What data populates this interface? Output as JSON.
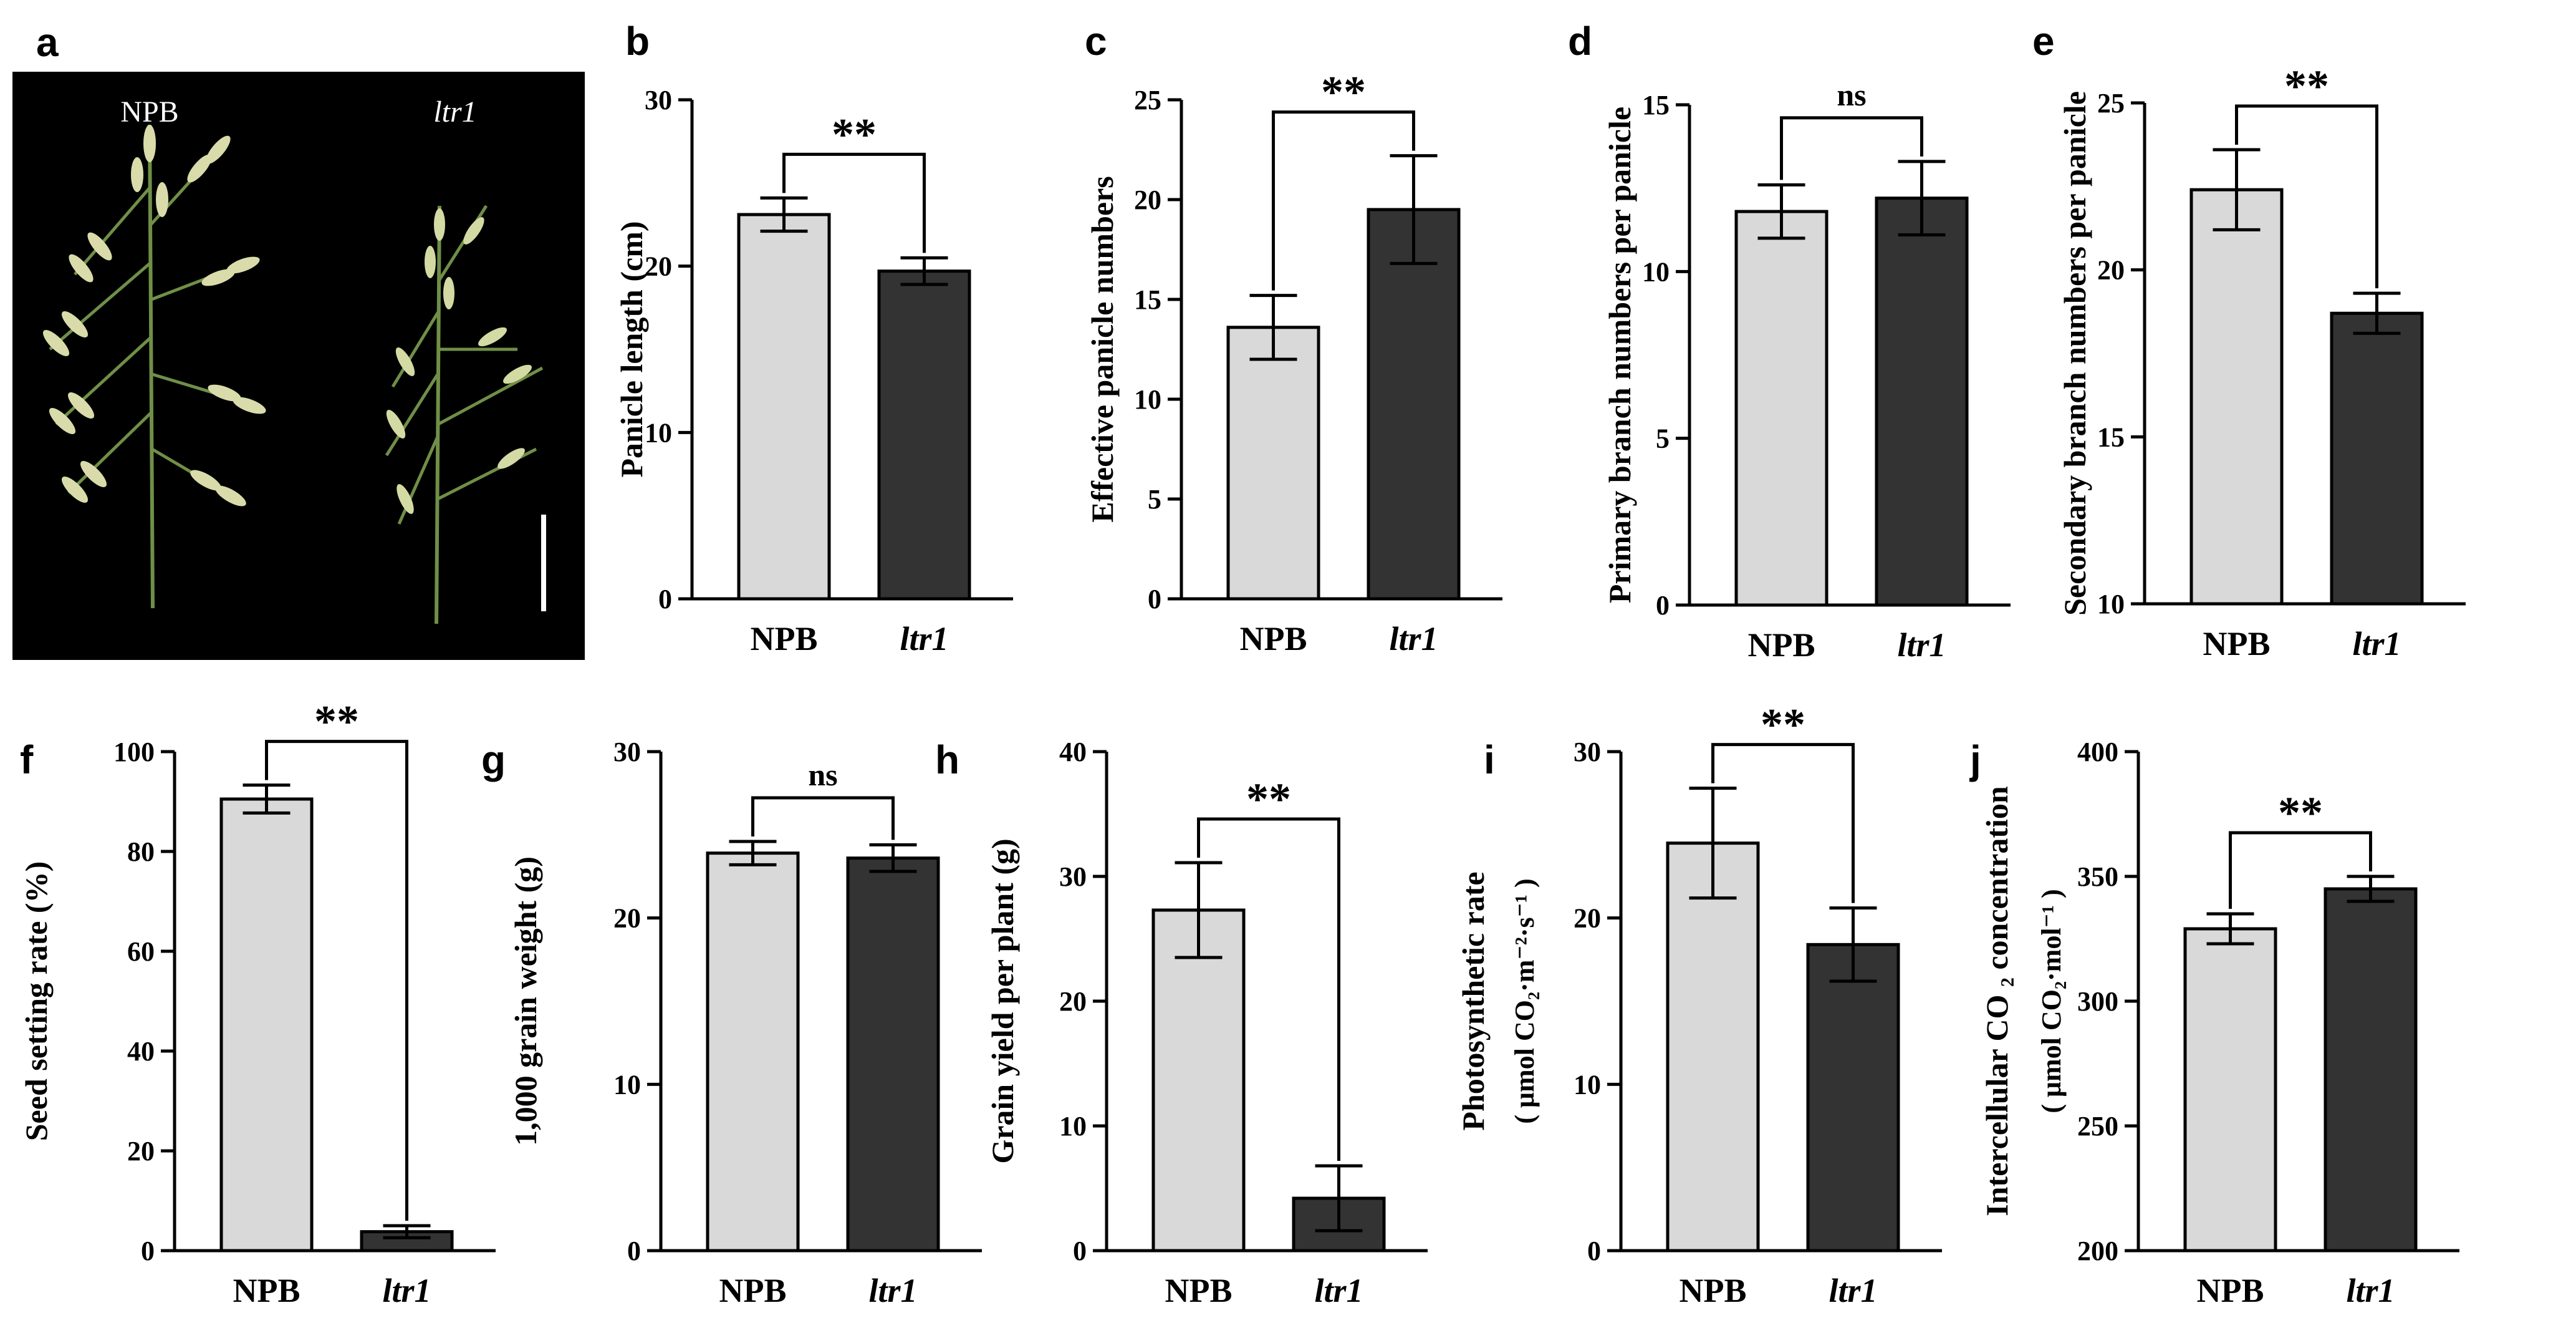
{
  "photo": {
    "letter": "a",
    "label_left": "NPB",
    "label_right": "ltr1"
  },
  "chart_data": [
    {
      "panel": "b",
      "type": "bar",
      "categories": [
        "NPB",
        "ltr1"
      ],
      "values": [
        23.1,
        19.7
      ],
      "errors": [
        1.0,
        0.8
      ],
      "ylabel": "Panicle length (cm)",
      "ylim": [
        0,
        30
      ],
      "yticks": [
        "0",
        "10",
        "20",
        "30"
      ],
      "significance": "**",
      "colors": [
        "#d9d9d9",
        "#333333"
      ]
    },
    {
      "panel": "c",
      "type": "bar",
      "categories": [
        "NPB",
        "ltr1"
      ],
      "values": [
        13.6,
        19.5
      ],
      "errors": [
        1.6,
        2.7
      ],
      "ylabel": "Effective panicle numbers",
      "ylim": [
        0,
        25
      ],
      "yticks": [
        "0",
        "5",
        "10",
        "15",
        "20",
        "25"
      ],
      "significance": "**",
      "colors": [
        "#d9d9d9",
        "#333333"
      ]
    },
    {
      "panel": "d",
      "type": "bar",
      "categories": [
        "NPB",
        "ltr1"
      ],
      "values": [
        11.8,
        12.2
      ],
      "errors": [
        0.8,
        1.1
      ],
      "ylabel": "Primary branch numbers per panicle",
      "ylim": [
        0,
        15
      ],
      "yticks": [
        "0",
        "5",
        "10",
        "15"
      ],
      "significance": "ns",
      "colors": [
        "#d9d9d9",
        "#333333"
      ]
    },
    {
      "panel": "e",
      "type": "bar",
      "categories": [
        "NPB",
        "ltr1"
      ],
      "values": [
        22.4,
        18.7
      ],
      "errors": [
        1.2,
        0.6
      ],
      "ylabel": "Secondary branch numbers per panicle",
      "ylim": [
        10,
        25
      ],
      "yticks": [
        "10",
        "15",
        "20",
        "25"
      ],
      "significance": "**",
      "colors": [
        "#d9d9d9",
        "#333333"
      ]
    },
    {
      "panel": "f",
      "type": "bar",
      "categories": [
        "NPB",
        "ltr1"
      ],
      "values": [
        90.5,
        3.8
      ],
      "errors": [
        2.8,
        1.2
      ],
      "ylabel": "Seed setting rate (%)",
      "ylim": [
        0,
        100
      ],
      "yticks": [
        "0",
        "20",
        "40",
        "60",
        "80",
        "100"
      ],
      "significance": "**",
      "colors": [
        "#d9d9d9",
        "#333333"
      ]
    },
    {
      "panel": "g",
      "type": "bar",
      "categories": [
        "NPB",
        "ltr1"
      ],
      "values": [
        23.9,
        23.6
      ],
      "errors": [
        0.7,
        0.8
      ],
      "ylabel": "1,000 grain weight (g)",
      "ylim": [
        0,
        30
      ],
      "yticks": [
        "0",
        "10",
        "20",
        "30"
      ],
      "significance": "ns",
      "colors": [
        "#d9d9d9",
        "#333333"
      ]
    },
    {
      "panel": "h",
      "type": "bar",
      "categories": [
        "NPB",
        "ltr1"
      ],
      "values": [
        27.3,
        4.2
      ],
      "errors": [
        3.8,
        2.6
      ],
      "ylabel": "Grain yield per plant (g)",
      "ylim": [
        0,
        40
      ],
      "yticks": [
        "0",
        "10",
        "20",
        "30",
        "40"
      ],
      "significance": "**",
      "colors": [
        "#d9d9d9",
        "#333333"
      ]
    },
    {
      "panel": "i",
      "type": "bar",
      "categories": [
        "NPB",
        "ltr1"
      ],
      "values": [
        24.5,
        18.4
      ],
      "errors": [
        3.3,
        2.2
      ],
      "ylabel": "Photosynthetic rate",
      "ylabel2": "( μmol CO₂·m⁻²·s⁻¹ )",
      "ylim": [
        0,
        30
      ],
      "yticks": [
        "0",
        "10",
        "20",
        "30"
      ],
      "significance": "**",
      "colors": [
        "#d9d9d9",
        "#333333"
      ]
    },
    {
      "panel": "j",
      "type": "bar",
      "categories": [
        "NPB",
        "ltr1"
      ],
      "values": [
        329,
        345
      ],
      "errors": [
        6,
        5
      ],
      "ylabel": "Intercellular CO ₂ concentration",
      "ylabel2": "( μmol CO₂·mol⁻¹ )",
      "ylim": [
        200,
        400
      ],
      "yticks": [
        "200",
        "250",
        "300",
        "350",
        "400"
      ],
      "significance": "**",
      "colors": [
        "#d9d9d9",
        "#333333"
      ]
    }
  ]
}
